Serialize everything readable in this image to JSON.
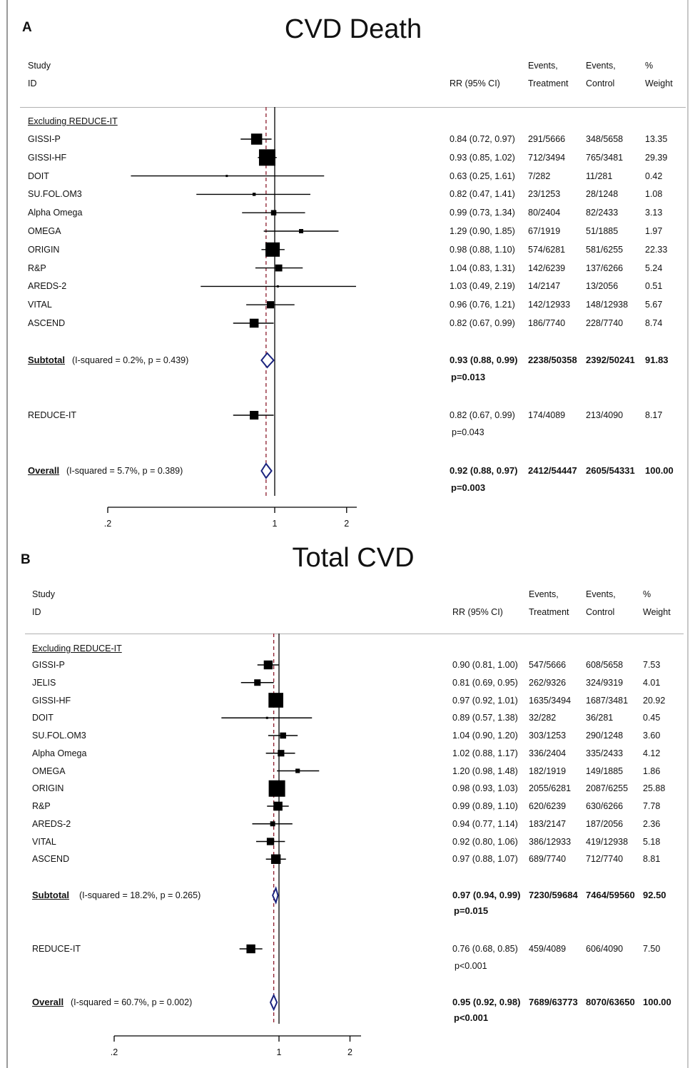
{
  "panels": [
    {
      "letter": "A",
      "title": "CVD Death",
      "headers": {
        "study": "Study",
        "id": "ID",
        "rr": "RR (95% CI)",
        "events_t_1": "Events,",
        "events_t_2": "Treatment",
        "events_c_1": "Events,",
        "events_c_2": "Control",
        "weight_1": "%",
        "weight_2": "Weight"
      },
      "group_label": "Excluding REDUCE-IT",
      "studies": [
        {
          "name": "GISSI-P",
          "rr": "0.84 (0.72, 0.97)",
          "et": "291/5666",
          "ec": "348/5658",
          "w": "13.35"
        },
        {
          "name": "GISSI-HF",
          "rr": "0.93 (0.85, 1.02)",
          "et": "712/3494",
          "ec": "765/3481",
          "w": "29.39"
        },
        {
          "name": "DOIT",
          "rr": "0.63 (0.25, 1.61)",
          "et": "7/282",
          "ec": "11/281",
          "w": "0.42"
        },
        {
          "name": "SU.FOL.OM3",
          "rr": "0.82 (0.47, 1.41)",
          "et": "23/1253",
          "ec": "28/1248",
          "w": "1.08"
        },
        {
          "name": "Alpha Omega",
          "rr": "0.99 (0.73, 1.34)",
          "et": "80/2404",
          "ec": "82/2433",
          "w": "3.13"
        },
        {
          "name": "OMEGA",
          "rr": "1.29 (0.90, 1.85)",
          "et": "67/1919",
          "ec": "51/1885",
          "w": "1.97"
        },
        {
          "name": "ORIGIN",
          "rr": "0.98 (0.88, 1.10)",
          "et": "574/6281",
          "ec": "581/6255",
          "w": "22.33"
        },
        {
          "name": "R&P",
          "rr": "1.04 (0.83, 1.31)",
          "et": "142/6239",
          "ec": "137/6266",
          "w": "5.24"
        },
        {
          "name": "AREDS-2",
          "rr": "1.03 (0.49, 2.19)",
          "et": "14/2147",
          "ec": "13/2056",
          "w": "0.51"
        },
        {
          "name": "VITAL",
          "rr": "0.96 (0.76, 1.21)",
          "et": "142/12933",
          "ec": "148/12938",
          "w": "5.67"
        },
        {
          "name": "ASCEND",
          "rr": "0.82 (0.67, 0.99)",
          "et": "186/7740",
          "ec": "228/7740",
          "w": "8.74"
        }
      ],
      "subtotal": {
        "label": "Subtotal",
        "stats": "(I-squared = 0.2%, p = 0.439)",
        "rr": "0.93 (0.88, 0.99)",
        "et": "2238/50358",
        "ec": "2392/50241",
        "w": "91.83",
        "p": "p=0.013"
      },
      "reduce_it": {
        "name": "REDUCE-IT",
        "rr": "0.82 (0.67, 0.99)",
        "et": "174/4089",
        "ec": "213/4090",
        "w": "8.17",
        "p": "p=0.043"
      },
      "overall": {
        "label": "Overall",
        "stats": "(I-squared = 5.7%, p = 0.389)",
        "rr": "0.92 (0.88, 0.97)",
        "et": "2412/54447",
        "ec": "2605/54331",
        "w": "100.00",
        "p": "p=0.003"
      },
      "axis_ticks": [
        ".2",
        "1",
        "2"
      ]
    },
    {
      "letter": "B",
      "title": "Total CVD",
      "headers": {
        "study": "Study",
        "id": "ID",
        "rr": "RR (95% CI)",
        "events_t_1": "Events,",
        "events_t_2": "Treatment",
        "events_c_1": "Events,",
        "events_c_2": "Control",
        "weight_1": "%",
        "weight_2": "Weight"
      },
      "group_label": "Excluding REDUCE-IT",
      "studies": [
        {
          "name": "GISSI-P",
          "rr": "0.90 (0.81, 1.00)",
          "et": "547/5666",
          "ec": "608/5658",
          "w": "7.53"
        },
        {
          "name": "JELIS",
          "rr": "0.81 (0.69, 0.95)",
          "et": "262/9326",
          "ec": "324/9319",
          "w": "4.01"
        },
        {
          "name": "GISSI-HF",
          "rr": "0.97 (0.92, 1.01)",
          "et": "1635/3494",
          "ec": "1687/3481",
          "w": "20.92"
        },
        {
          "name": "DOIT",
          "rr": "0.89 (0.57, 1.38)",
          "et": "32/282",
          "ec": "36/281",
          "w": "0.45"
        },
        {
          "name": "SU.FOL.OM3",
          "rr": "1.04 (0.90, 1.20)",
          "et": "303/1253",
          "ec": "290/1248",
          "w": "3.60"
        },
        {
          "name": "Alpha Omega",
          "rr": "1.02 (0.88, 1.17)",
          "et": "336/2404",
          "ec": "335/2433",
          "w": "4.12"
        },
        {
          "name": "OMEGA",
          "rr": "1.20 (0.98, 1.48)",
          "et": "182/1919",
          "ec": "149/1885",
          "w": "1.86"
        },
        {
          "name": "ORIGIN",
          "rr": "0.98 (0.93, 1.03)",
          "et": "2055/6281",
          "ec": "2087/6255",
          "w": "25.88"
        },
        {
          "name": "R&P",
          "rr": "0.99 (0.89, 1.10)",
          "et": "620/6239",
          "ec": "630/6266",
          "w": "7.78"
        },
        {
          "name": "AREDS-2",
          "rr": "0.94 (0.77, 1.14)",
          "et": "183/2147",
          "ec": "187/2056",
          "w": "2.36"
        },
        {
          "name": "VITAL",
          "rr": "0.92 (0.80, 1.06)",
          "et": "386/12933",
          "ec": "419/12938",
          "w": "5.18"
        },
        {
          "name": "ASCEND",
          "rr": "0.97 (0.88, 1.07)",
          "et": "689/7740",
          "ec": "712/7740",
          "w": "8.81"
        }
      ],
      "subtotal": {
        "label": "Subtotal",
        "stats": "(I-squared = 18.2%, p = 0.265)",
        "rr": "0.97 (0.94, 0.99)",
        "et": "7230/59684",
        "ec": "7464/59560",
        "w": "92.50",
        "p": "p=0.015"
      },
      "reduce_it": {
        "name": "REDUCE-IT",
        "rr": "0.76 (0.68, 0.85)",
        "et": "459/4089",
        "ec": "606/4090",
        "w": "7.50",
        "p": "p<0.001"
      },
      "overall": {
        "label": "Overall",
        "stats": "(I-squared = 60.7%, p = 0.002)",
        "rr": "0.95 (0.92, 0.98)",
        "et": "7689/63773",
        "ec": "8070/63650",
        "w": "100.00",
        "p": "p<0.001"
      },
      "axis_ticks": [
        ".2",
        "1",
        "2"
      ]
    }
  ],
  "chart_data": [
    {
      "type": "forest",
      "title": "CVD Death",
      "xscale": "log",
      "xlim": [
        0.2,
        2.6
      ],
      "xticks": [
        0.2,
        1,
        2
      ],
      "studies": [
        {
          "name": "GISSI-P",
          "rr": 0.84,
          "lo": 0.72,
          "hi": 0.97,
          "weight": 13.35
        },
        {
          "name": "GISSI-HF",
          "rr": 0.93,
          "lo": 0.85,
          "hi": 1.02,
          "weight": 29.39
        },
        {
          "name": "DOIT",
          "rr": 0.63,
          "lo": 0.25,
          "hi": 1.61,
          "weight": 0.42
        },
        {
          "name": "SU.FOL.OM3",
          "rr": 0.82,
          "lo": 0.47,
          "hi": 1.41,
          "weight": 1.08
        },
        {
          "name": "Alpha Omega",
          "rr": 0.99,
          "lo": 0.73,
          "hi": 1.34,
          "weight": 3.13
        },
        {
          "name": "OMEGA",
          "rr": 1.29,
          "lo": 0.9,
          "hi": 1.85,
          "weight": 1.97
        },
        {
          "name": "ORIGIN",
          "rr": 0.98,
          "lo": 0.88,
          "hi": 1.1,
          "weight": 22.33
        },
        {
          "name": "R&P",
          "rr": 1.04,
          "lo": 0.83,
          "hi": 1.31,
          "weight": 5.24
        },
        {
          "name": "AREDS-2",
          "rr": 1.03,
          "lo": 0.49,
          "hi": 2.19,
          "weight": 0.51
        },
        {
          "name": "VITAL",
          "rr": 0.96,
          "lo": 0.76,
          "hi": 1.21,
          "weight": 5.67
        },
        {
          "name": "ASCEND",
          "rr": 0.82,
          "lo": 0.67,
          "hi": 0.99,
          "weight": 8.74
        }
      ],
      "subtotal": {
        "rr": 0.93,
        "lo": 0.88,
        "hi": 0.99
      },
      "reduce_it": {
        "rr": 0.82,
        "lo": 0.67,
        "hi": 0.99,
        "weight": 8.17
      },
      "overall": {
        "rr": 0.92,
        "lo": 0.88,
        "hi": 0.97
      },
      "colors": {
        "marker": "#000000",
        "diamond": "#1a237e",
        "overall_line": "#8b1a2b"
      }
    },
    {
      "type": "forest",
      "title": "Total CVD",
      "xscale": "log",
      "xlim": [
        0.2,
        2.6
      ],
      "xticks": [
        0.2,
        1,
        2
      ],
      "studies": [
        {
          "name": "GISSI-P",
          "rr": 0.9,
          "lo": 0.81,
          "hi": 1.0,
          "weight": 7.53
        },
        {
          "name": "JELIS",
          "rr": 0.81,
          "lo": 0.69,
          "hi": 0.95,
          "weight": 4.01
        },
        {
          "name": "GISSI-HF",
          "rr": 0.97,
          "lo": 0.92,
          "hi": 1.01,
          "weight": 20.92
        },
        {
          "name": "DOIT",
          "rr": 0.89,
          "lo": 0.57,
          "hi": 1.38,
          "weight": 0.45
        },
        {
          "name": "SU.FOL.OM3",
          "rr": 1.04,
          "lo": 0.9,
          "hi": 1.2,
          "weight": 3.6
        },
        {
          "name": "Alpha Omega",
          "rr": 1.02,
          "lo": 0.88,
          "hi": 1.17,
          "weight": 4.12
        },
        {
          "name": "OMEGA",
          "rr": 1.2,
          "lo": 0.98,
          "hi": 1.48,
          "weight": 1.86
        },
        {
          "name": "ORIGIN",
          "rr": 0.98,
          "lo": 0.93,
          "hi": 1.03,
          "weight": 25.88
        },
        {
          "name": "R&P",
          "rr": 0.99,
          "lo": 0.89,
          "hi": 1.1,
          "weight": 7.78
        },
        {
          "name": "AREDS-2",
          "rr": 0.94,
          "lo": 0.77,
          "hi": 1.14,
          "weight": 2.36
        },
        {
          "name": "VITAL",
          "rr": 0.92,
          "lo": 0.8,
          "hi": 1.06,
          "weight": 5.18
        },
        {
          "name": "ASCEND",
          "rr": 0.97,
          "lo": 0.88,
          "hi": 1.07,
          "weight": 8.81
        }
      ],
      "subtotal": {
        "rr": 0.97,
        "lo": 0.94,
        "hi": 0.99
      },
      "reduce_it": {
        "rr": 0.76,
        "lo": 0.68,
        "hi": 0.85,
        "weight": 7.5
      },
      "overall": {
        "rr": 0.95,
        "lo": 0.92,
        "hi": 0.98
      },
      "colors": {
        "marker": "#000000",
        "diamond": "#1a237e",
        "overall_line": "#8b1a2b"
      }
    }
  ]
}
